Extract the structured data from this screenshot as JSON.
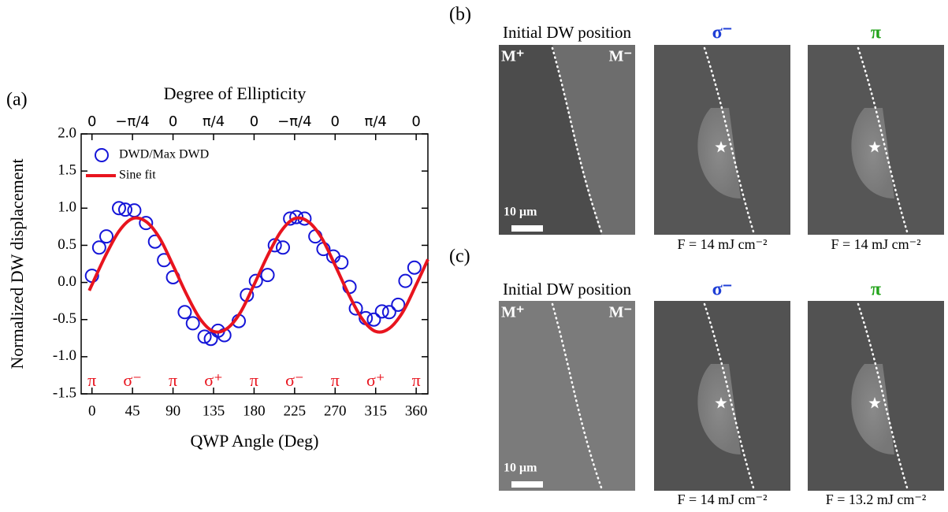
{
  "chart_data": {
    "type": "scatter",
    "panel_label": "(a)",
    "xlabel": "QWP Angle (Deg)",
    "ylabel": "Normalized DW displacement",
    "x2label": "Degree of Ellipticity",
    "xlim": [
      -12,
      373
    ],
    "ylim": [
      -1.5,
      2.0
    ],
    "xticks": [
      0,
      45,
      90,
      135,
      180,
      225,
      270,
      315,
      360
    ],
    "yticks": [
      {
        "value": -1.5,
        "label": "-1.5"
      },
      {
        "value": -1,
        "label": "-1.0"
      },
      {
        "value": -0.5,
        "label": "-0.5"
      },
      {
        "value": 0,
        "label": "0.0"
      },
      {
        "value": 0.5,
        "label": "0.5"
      },
      {
        "value": 1,
        "label": "1.0"
      },
      {
        "value": 1.5,
        "label": "1.5"
      },
      {
        "value": 2,
        "label": "2.0"
      }
    ],
    "x2ticks": [
      {
        "value": 0,
        "label": "0"
      },
      {
        "value": 45,
        "label": "−π/4"
      },
      {
        "value": 90,
        "label": "0"
      },
      {
        "value": 135,
        "label": "π/4"
      },
      {
        "value": 180,
        "label": "0"
      },
      {
        "value": 225,
        "label": "−π/4"
      },
      {
        "value": 270,
        "label": "0"
      },
      {
        "value": 315,
        "label": "π/4"
      },
      {
        "value": 360,
        "label": "0"
      }
    ],
    "annotations": [
      {
        "x": 0,
        "label": "π"
      },
      {
        "x": 45,
        "label": "σ⁻"
      },
      {
        "x": 90,
        "label": "π"
      },
      {
        "x": 135,
        "label": "σ⁺"
      },
      {
        "x": 180,
        "label": "π"
      },
      {
        "x": 225,
        "label": "σ⁻"
      },
      {
        "x": 270,
        "label": "π"
      },
      {
        "x": 315,
        "label": "σ⁺"
      },
      {
        "x": 360,
        "label": "π"
      }
    ],
    "annotation_color": "#e8141e",
    "legend": "upper left",
    "series": [
      {
        "name": "DWD/Max DWD",
        "mode": "markers",
        "color": "#1515d8",
        "x": [
          0,
          8,
          16,
          30,
          37,
          47,
          60,
          70,
          80,
          90,
          103,
          112,
          125,
          132,
          140,
          147,
          163,
          172,
          182,
          195,
          203,
          212,
          220,
          227,
          236,
          248,
          257,
          268,
          277,
          286,
          293,
          304,
          313,
          322,
          330,
          340,
          348,
          358
        ],
        "values": [
          0.09,
          0.47,
          0.62,
          1.0,
          0.98,
          0.97,
          0.8,
          0.55,
          0.3,
          0.07,
          -0.4,
          -0.55,
          -0.73,
          -0.76,
          -0.65,
          -0.71,
          -0.52,
          -0.17,
          0.02,
          0.1,
          0.5,
          0.47,
          0.86,
          0.88,
          0.86,
          0.62,
          0.45,
          0.35,
          0.27,
          -0.06,
          -0.35,
          -0.48,
          -0.5,
          -0.39,
          -0.4,
          -0.3,
          0.02,
          0.2
        ]
      },
      {
        "name": "Sine fit",
        "mode": "line",
        "color": "#e8141e",
        "x": [
          -3,
          0,
          15,
          30,
          45,
          60,
          75,
          90,
          105,
          120,
          135,
          150,
          165,
          180,
          195,
          210,
          225,
          240,
          255,
          270,
          285,
          300,
          315,
          330,
          345,
          360,
          373
        ],
        "values": [
          -0.11,
          -0.03,
          0.36,
          0.69,
          0.86,
          0.82,
          0.6,
          0.23,
          -0.16,
          -0.49,
          -0.66,
          -0.62,
          -0.4,
          -0.03,
          0.36,
          0.69,
          0.86,
          0.82,
          0.6,
          0.23,
          -0.16,
          -0.49,
          -0.66,
          -0.62,
          -0.4,
          -0.03,
          0.31
        ]
      }
    ]
  },
  "image_panels": [
    {
      "label": "(b)",
      "headings": [
        "Initial DW position",
        "σ⁻",
        "π"
      ],
      "heading_colors": [
        "#000000",
        "#1f3fd6",
        "#22a31a"
      ],
      "domain_labels": [
        "M⁺",
        "M⁻"
      ],
      "scale_bar": "10 μm",
      "captions": [
        "F = 14 mJ cm⁻²",
        "F = 14 mJ cm⁻²"
      ]
    },
    {
      "label": "(c)",
      "headings": [
        "Initial DW position",
        "σ⁻",
        "π"
      ],
      "heading_colors": [
        "#000000",
        "#1f3fd6",
        "#22a31a"
      ],
      "domain_labels": [
        "M⁺",
        "M⁻"
      ],
      "scale_bar": "10 μm",
      "captions": [
        "F = 14 mJ cm⁻²",
        "F = 13.2 mJ cm⁻²"
      ]
    }
  ]
}
